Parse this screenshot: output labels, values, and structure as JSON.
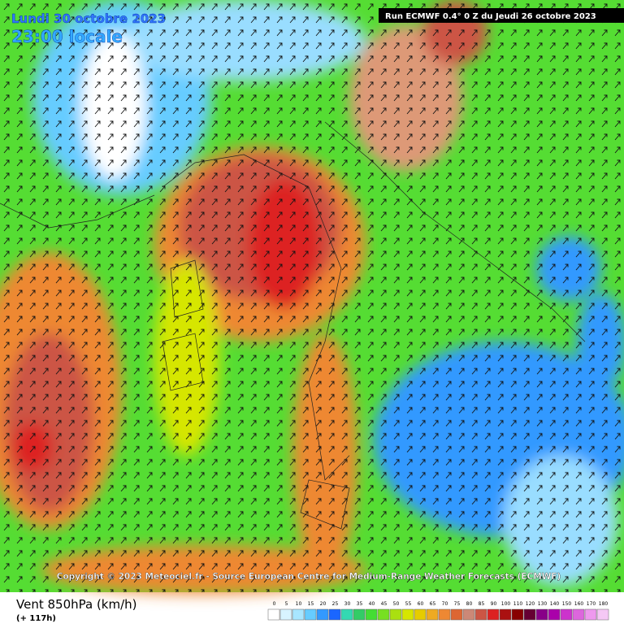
{
  "header": {
    "date": "Lundi 30 octobre 2023",
    "time": "23:00 locale",
    "run": "Run ECMWF 0.4° 0 Z du Jeudi 26 octobre 2023"
  },
  "copyright": "Copyright © 2023 Meteociel.fr - Source European Centre for Medium-Range Weather Forecasts (ECMWF)",
  "footer": {
    "title": "Vent 850hPa (km/h)",
    "lead": "(+ 117h)"
  },
  "legend": {
    "labels": [
      0,
      5,
      10,
      15,
      20,
      25,
      30,
      35,
      40,
      45,
      50,
      55,
      60,
      65,
      70,
      75,
      80,
      85,
      90,
      100,
      110,
      120,
      130,
      140,
      150,
      160,
      170,
      180
    ],
    "colors": [
      "#ffffff",
      "#d8f4ff",
      "#a8e6ff",
      "#66ccff",
      "#3399ff",
      "#1a66ff",
      "#33d9b2",
      "#33cc66",
      "#44dd33",
      "#77e022",
      "#aae010",
      "#d6e600",
      "#e6cc00",
      "#eeaa22",
      "#ee8833",
      "#dd6633",
      "#cc8877",
      "#cc5544",
      "#dd2222",
      "#aa1111",
      "#880000",
      "#660033",
      "#880088",
      "#aa00aa",
      "#cc33cc",
      "#dd66dd",
      "#ee99ee",
      "#f5c8f5"
    ]
  }
}
